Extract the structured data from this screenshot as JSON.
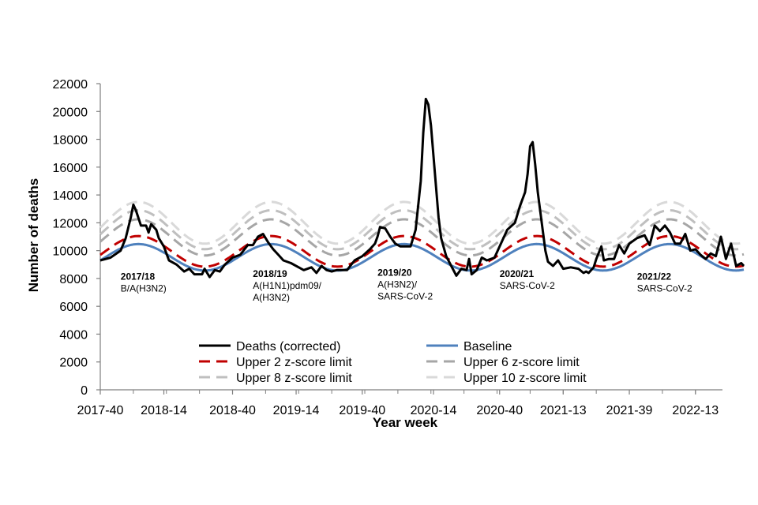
{
  "chart_data": {
    "type": "line",
    "title": "",
    "xlabel": "Year week",
    "ylabel": "Number of deaths",
    "ylim": [
      0,
      22000
    ],
    "yticks": [
      0,
      2000,
      4000,
      6000,
      8000,
      10000,
      12000,
      14000,
      16000,
      18000,
      20000,
      22000
    ],
    "xlim": [
      0,
      244
    ],
    "xticks": [
      {
        "pos": 0,
        "label": "2017-40"
      },
      {
        "pos": 25,
        "label": "2018-14"
      },
      {
        "pos": 52,
        "label": "2018-40"
      },
      {
        "pos": 77,
        "label": "2019-14"
      },
      {
        "pos": 103,
        "label": "2019-40"
      },
      {
        "pos": 131,
        "label": "2020-14"
      },
      {
        "pos": 157,
        "label": "2020-40"
      },
      {
        "pos": 182,
        "label": "2021-13"
      },
      {
        "pos": 208,
        "label": "2021-39"
      },
      {
        "pos": 234,
        "label": "2022-13"
      }
    ],
    "series": [
      {
        "name": "Deaths (corrected)",
        "color": "#000000",
        "style": "solid",
        "width": 3,
        "points": [
          [
            0,
            9300
          ],
          [
            4,
            9500
          ],
          [
            8,
            10000
          ],
          [
            10,
            10900
          ],
          [
            12,
            12400
          ],
          [
            13,
            13300
          ],
          [
            14,
            12900
          ],
          [
            16,
            11800
          ],
          [
            18,
            11800
          ],
          [
            19,
            11300
          ],
          [
            20,
            11900
          ],
          [
            22,
            11500
          ],
          [
            23,
            10900
          ],
          [
            25,
            10300
          ],
          [
            27,
            9300
          ],
          [
            30,
            9000
          ],
          [
            33,
            8500
          ],
          [
            35,
            8700
          ],
          [
            37,
            8300
          ],
          [
            40,
            8300
          ],
          [
            41,
            8700
          ],
          [
            43,
            8100
          ],
          [
            45,
            8600
          ],
          [
            47,
            8500
          ],
          [
            49,
            9000
          ],
          [
            52,
            9500
          ],
          [
            55,
            9700
          ],
          [
            58,
            10400
          ],
          [
            60,
            10400
          ],
          [
            62,
            11000
          ],
          [
            64,
            11200
          ],
          [
            66,
            10600
          ],
          [
            68,
            10100
          ],
          [
            70,
            9700
          ],
          [
            72,
            9300
          ],
          [
            75,
            9100
          ],
          [
            78,
            8800
          ],
          [
            80,
            8600
          ],
          [
            83,
            8800
          ],
          [
            85,
            8400
          ],
          [
            87,
            8900
          ],
          [
            89,
            8600
          ],
          [
            91,
            8500
          ],
          [
            93,
            8600
          ],
          [
            95,
            8600
          ],
          [
            97,
            8600
          ],
          [
            100,
            9300
          ],
          [
            103,
            9600
          ],
          [
            106,
            10100
          ],
          [
            108,
            10500
          ],
          [
            109,
            11000
          ],
          [
            110,
            11700
          ],
          [
            112,
            11600
          ],
          [
            114,
            11000
          ],
          [
            116,
            10500
          ],
          [
            118,
            10300
          ],
          [
            120,
            10300
          ],
          [
            122,
            10300
          ],
          [
            124,
            11500
          ],
          [
            126,
            15000
          ],
          [
            127,
            18500
          ],
          [
            128,
            20900
          ],
          [
            129,
            20500
          ],
          [
            130,
            19000
          ],
          [
            131,
            16800
          ],
          [
            132,
            14600
          ],
          [
            133,
            12400
          ],
          [
            134,
            10900
          ],
          [
            136,
            9600
          ],
          [
            138,
            8900
          ],
          [
            140,
            8200
          ],
          [
            142,
            8700
          ],
          [
            144,
            8600
          ],
          [
            145,
            9400
          ],
          [
            146,
            8300
          ],
          [
            148,
            8600
          ],
          [
            150,
            9500
          ],
          [
            152,
            9300
          ],
          [
            155,
            9500
          ],
          [
            158,
            10700
          ],
          [
            160,
            11500
          ],
          [
            163,
            12000
          ],
          [
            165,
            13200
          ],
          [
            167,
            14200
          ],
          [
            168,
            15500
          ],
          [
            169,
            17500
          ],
          [
            170,
            17800
          ],
          [
            171,
            16200
          ],
          [
            172,
            14200
          ],
          [
            173,
            12800
          ],
          [
            174,
            11400
          ],
          [
            175,
            10000
          ],
          [
            176,
            9200
          ],
          [
            178,
            8900
          ],
          [
            180,
            9300
          ],
          [
            182,
            8700
          ],
          [
            185,
            8800
          ],
          [
            188,
            8700
          ],
          [
            190,
            8400
          ],
          [
            191,
            8500
          ],
          [
            192,
            8400
          ],
          [
            194,
            8800
          ],
          [
            195,
            9400
          ],
          [
            197,
            10300
          ],
          [
            198,
            9300
          ],
          [
            200,
            9400
          ],
          [
            202,
            9400
          ],
          [
            204,
            10400
          ],
          [
            206,
            9800
          ],
          [
            208,
            10500
          ],
          [
            211,
            10900
          ],
          [
            214,
            11100
          ],
          [
            216,
            10400
          ],
          [
            218,
            11800
          ],
          [
            220,
            11400
          ],
          [
            222,
            11800
          ],
          [
            224,
            11300
          ],
          [
            226,
            10500
          ],
          [
            228,
            10500
          ],
          [
            230,
            11200
          ],
          [
            232,
            10000
          ],
          [
            234,
            10100
          ],
          [
            236,
            9700
          ],
          [
            238,
            9400
          ],
          [
            240,
            9800
          ],
          [
            242,
            9600
          ],
          [
            244,
            11000
          ],
          [
            246,
            9400
          ],
          [
            248,
            10500
          ],
          [
            250,
            8900
          ],
          [
            252,
            9100
          ],
          [
            253,
            8900
          ]
        ]
      },
      {
        "name": "Baseline",
        "color": "#4f81bd",
        "style": "solid",
        "width": 3,
        "center": 9520,
        "amp": 950,
        "peak": 15,
        "period": 52.2,
        "start": 0,
        "end": 253
      },
      {
        "name": "Upper 2 z-score limit",
        "color": "#c00000",
        "style": "dashed",
        "width": 3,
        "center": 9950,
        "amp": 1100,
        "peak": 15,
        "period": 52.2,
        "start": 0,
        "end": 253
      },
      {
        "name": "Upper 6 z-score limit",
        "color": "#a6a6a6",
        "style": "dashed",
        "width": 3,
        "center": 10950,
        "amp": 1300,
        "peak": 15,
        "period": 52.2,
        "start": 0,
        "end": 253
      },
      {
        "name": "Upper 8 z-score limit",
        "color": "#bfbfbf",
        "style": "dashed",
        "width": 3,
        "center": 11500,
        "amp": 1400,
        "peak": 15,
        "period": 52.2,
        "start": 0,
        "end": 253
      },
      {
        "name": "Upper 10 z-score limit",
        "color": "#d9d9d9",
        "style": "dashed",
        "width": 3,
        "center": 12000,
        "amp": 1500,
        "peak": 15,
        "period": 52.2,
        "start": 0,
        "end": 253
      }
    ],
    "annotations": [
      {
        "bold": "2017/18",
        "lines": [
          "B/A(H3N2)"
        ],
        "x": 8,
        "y": 7900
      },
      {
        "bold": "2018/19",
        "lines": [
          "A(H1N1)pdm09/",
          "A(H3N2)"
        ],
        "x": 60,
        "y": 8100
      },
      {
        "bold": "2019/20",
        "lines": [
          "A(H3N2)/",
          "SARS-CoV-2"
        ],
        "x": 109,
        "y": 8200
      },
      {
        "bold": "2020/21",
        "lines": [
          "SARS-CoV-2"
        ],
        "x": 157,
        "y": 8100
      },
      {
        "bold": "2021/22",
        "lines": [
          "SARS-CoV-2"
        ],
        "x": 211,
        "y": 7900
      }
    ],
    "legend_position": "bottom-center",
    "grid": false
  }
}
